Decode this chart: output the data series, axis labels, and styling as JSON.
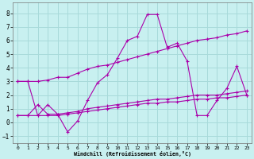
{
  "xlabel": "Windchill (Refroidissement éolien,°C)",
  "background_color": "#c8f0f0",
  "grid_color": "#a8dada",
  "line_color": "#aa00aa",
  "xlim": [
    -0.5,
    23.5
  ],
  "ylim": [
    -1.5,
    8.8
  ],
  "yticks": [
    -1,
    0,
    1,
    2,
    3,
    4,
    5,
    6,
    7,
    8
  ],
  "xticks": [
    0,
    1,
    2,
    3,
    4,
    5,
    6,
    7,
    8,
    9,
    10,
    11,
    12,
    13,
    14,
    15,
    16,
    17,
    18,
    19,
    20,
    21,
    22,
    23
  ],
  "line_main_x": [
    0,
    1,
    2,
    3,
    4,
    5,
    6,
    7,
    8,
    9,
    10,
    11,
    12,
    13,
    14,
    15,
    16,
    17,
    18,
    19,
    20,
    21,
    22,
    23
  ],
  "line_main_y": [
    3.0,
    3.0,
    0.5,
    1.3,
    0.6,
    -0.7,
    0.1,
    1.6,
    2.9,
    3.5,
    4.7,
    6.0,
    6.3,
    7.9,
    7.9,
    5.5,
    5.8,
    4.5,
    0.5,
    0.5,
    1.6,
    2.5,
    4.1,
    2.0
  ],
  "line_upper_x": [
    0,
    1,
    2,
    3,
    4,
    5,
    6,
    7,
    8,
    9,
    10,
    11,
    12,
    13,
    14,
    15,
    16,
    17,
    18,
    19,
    20,
    21,
    22,
    23
  ],
  "line_upper_y": [
    3.0,
    3.0,
    3.0,
    3.1,
    3.3,
    3.3,
    3.6,
    3.9,
    4.1,
    4.2,
    4.4,
    4.6,
    4.8,
    5.0,
    5.2,
    5.4,
    5.6,
    5.8,
    6.0,
    6.1,
    6.2,
    6.4,
    6.5,
    6.7
  ],
  "line_mid_x": [
    0,
    1,
    2,
    3,
    4,
    5,
    6,
    7,
    8,
    9,
    10,
    11,
    12,
    13,
    14,
    15,
    16,
    17,
    18,
    19,
    20,
    21,
    22,
    23
  ],
  "line_mid_y": [
    0.5,
    0.5,
    1.3,
    0.6,
    0.6,
    0.7,
    0.8,
    1.0,
    1.1,
    1.2,
    1.3,
    1.4,
    1.5,
    1.6,
    1.7,
    1.7,
    1.8,
    1.9,
    2.0,
    2.0,
    2.0,
    2.1,
    2.2,
    2.3
  ],
  "line_low_x": [
    0,
    1,
    2,
    3,
    4,
    5,
    6,
    7,
    8,
    9,
    10,
    11,
    12,
    13,
    14,
    15,
    16,
    17,
    18,
    19,
    20,
    21,
    22,
    23
  ],
  "line_low_y": [
    0.5,
    0.5,
    0.5,
    0.5,
    0.5,
    0.6,
    0.7,
    0.8,
    0.9,
    1.0,
    1.1,
    1.2,
    1.3,
    1.4,
    1.4,
    1.5,
    1.5,
    1.6,
    1.7,
    1.7,
    1.8,
    1.8,
    1.9,
    2.0
  ]
}
